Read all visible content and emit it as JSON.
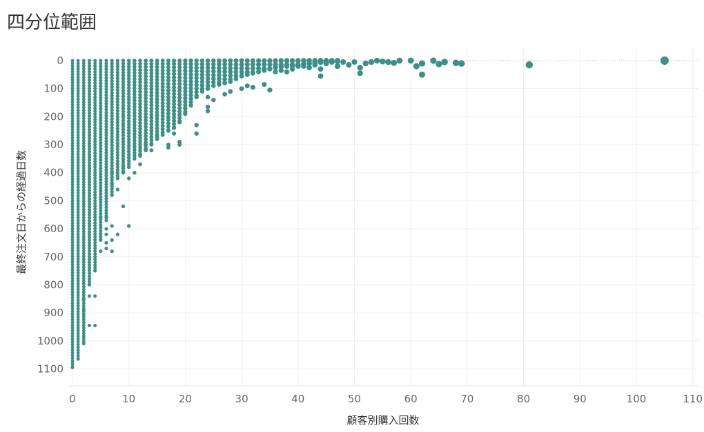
{
  "page": {
    "title": "四分位範囲"
  },
  "chart_data": {
    "type": "scatter",
    "title": "四分位範囲",
    "xlabel": "顧客別購入回数",
    "ylabel": "最終注文日からの経過日数",
    "xlim": [
      0,
      111
    ],
    "ylim": [
      0,
      1120
    ],
    "y_reversed": true,
    "x_ticks": [
      0,
      10,
      20,
      30,
      40,
      50,
      60,
      70,
      80,
      90,
      100,
      110
    ],
    "y_ticks": [
      0,
      100,
      200,
      300,
      400,
      500,
      600,
      700,
      800,
      900,
      1000,
      1100
    ],
    "grid": true,
    "legend": "none",
    "colors": {
      "points": "#3f8f88",
      "grid": "#eeeeee",
      "reference_line": "#bbbbbb"
    },
    "reference_line": {
      "y": 0,
      "style": "dotted"
    },
    "columns": [
      {
        "x": 0,
        "max": 1095
      },
      {
        "x": 1,
        "max": 1065
      },
      {
        "x": 2,
        "max": 1010
      },
      {
        "x": 3,
        "max": 800
      },
      {
        "x": 4,
        "max": 750
      },
      {
        "x": 5,
        "max": 640
      },
      {
        "x": 6,
        "max": 560
      },
      {
        "x": 7,
        "max": 480
      },
      {
        "x": 8,
        "max": 420
      },
      {
        "x": 9,
        "max": 400
      },
      {
        "x": 10,
        "max": 380
      },
      {
        "x": 11,
        "max": 350
      },
      {
        "x": 12,
        "max": 340
      },
      {
        "x": 13,
        "max": 320
      },
      {
        "x": 14,
        "max": 300
      },
      {
        "x": 15,
        "max": 280
      },
      {
        "x": 16,
        "max": 265
      },
      {
        "x": 17,
        "max": 250
      },
      {
        "x": 18,
        "max": 240
      },
      {
        "x": 19,
        "max": 220
      },
      {
        "x": 20,
        "max": 190
      },
      {
        "x": 21,
        "max": 160
      },
      {
        "x": 22,
        "max": 130
      },
      {
        "x": 23,
        "max": 110
      },
      {
        "x": 24,
        "max": 100
      },
      {
        "x": 25,
        "max": 90
      },
      {
        "x": 26,
        "max": 85
      },
      {
        "x": 27,
        "max": 80
      },
      {
        "x": 28,
        "max": 75
      },
      {
        "x": 29,
        "max": 65
      },
      {
        "x": 30,
        "max": 55
      },
      {
        "x": 31,
        "max": 50
      },
      {
        "x": 32,
        "max": 45
      },
      {
        "x": 33,
        "max": 40
      },
      {
        "x": 34,
        "max": 35
      },
      {
        "x": 35,
        "max": 30
      },
      {
        "x": 36,
        "max": 25
      },
      {
        "x": 37,
        "max": 22
      },
      {
        "x": 38,
        "max": 20
      },
      {
        "x": 39,
        "max": 18
      },
      {
        "x": 40,
        "max": 15
      },
      {
        "x": 41,
        "max": 12
      },
      {
        "x": 42,
        "max": 10
      },
      {
        "x": 43,
        "max": 8
      },
      {
        "x": 44,
        "max": 6
      },
      {
        "x": 45,
        "max": 5
      },
      {
        "x": 46,
        "max": 4
      },
      {
        "x": 47,
        "max": 3
      }
    ],
    "points": [
      {
        "x": 6,
        "y": 570
      },
      {
        "x": 6,
        "y": 600
      },
      {
        "x": 6,
        "y": 620
      },
      {
        "x": 6,
        "y": 650
      },
      {
        "x": 6,
        "y": 670
      },
      {
        "x": 7,
        "y": 590
      },
      {
        "x": 7,
        "y": 640
      },
      {
        "x": 7,
        "y": 680
      },
      {
        "x": 8,
        "y": 620
      },
      {
        "x": 9,
        "y": 520
      },
      {
        "x": 10,
        "y": 590
      },
      {
        "x": 3,
        "y": 840
      },
      {
        "x": 3,
        "y": 945
      },
      {
        "x": 2,
        "y": 850
      },
      {
        "x": 2,
        "y": 890
      },
      {
        "x": 4,
        "y": 840
      },
      {
        "x": 4,
        "y": 945
      },
      {
        "x": 5,
        "y": 680
      },
      {
        "x": 5,
        "y": 560
      },
      {
        "x": 7,
        "y": 400
      },
      {
        "x": 7,
        "y": 440
      },
      {
        "x": 8,
        "y": 460
      },
      {
        "x": 9,
        "y": 380
      },
      {
        "x": 10,
        "y": 420
      },
      {
        "x": 11,
        "y": 400
      },
      {
        "x": 12,
        "y": 370
      },
      {
        "x": 13,
        "y": 300
      },
      {
        "x": 14,
        "y": 320
      },
      {
        "x": 15,
        "y": 270
      },
      {
        "x": 17,
        "y": 300
      },
      {
        "x": 17,
        "y": 310
      },
      {
        "x": 18,
        "y": 260
      },
      {
        "x": 19,
        "y": 290
      },
      {
        "x": 19,
        "y": 300
      },
      {
        "x": 20,
        "y": 170
      },
      {
        "x": 22,
        "y": 230
      },
      {
        "x": 22,
        "y": 260
      },
      {
        "x": 24,
        "y": 130
      },
      {
        "x": 25,
        "y": 140
      },
      {
        "x": 24,
        "y": 165
      },
      {
        "x": 24,
        "y": 180
      },
      {
        "x": 27,
        "y": 120
      },
      {
        "x": 28,
        "y": 110
      },
      {
        "x": 30,
        "y": 100
      },
      {
        "x": 31,
        "y": 90
      },
      {
        "x": 32,
        "y": 95
      },
      {
        "x": 34,
        "y": 85
      },
      {
        "x": 35,
        "y": 105
      },
      {
        "x": 36,
        "y": 40
      },
      {
        "x": 37,
        "y": 35
      },
      {
        "x": 38,
        "y": 40
      },
      {
        "x": 39,
        "y": 30
      },
      {
        "x": 40,
        "y": 20
      },
      {
        "x": 41,
        "y": 20
      },
      {
        "x": 42,
        "y": 25
      },
      {
        "x": 43,
        "y": 15
      },
      {
        "x": 44,
        "y": 55
      },
      {
        "x": 44,
        "y": 30
      },
      {
        "x": 45,
        "y": 10
      },
      {
        "x": 46,
        "y": 5
      },
      {
        "x": 47,
        "y": 20
      },
      {
        "x": 48,
        "y": 5
      },
      {
        "x": 49,
        "y": 15
      },
      {
        "x": 50,
        "y": 5
      },
      {
        "x": 51,
        "y": 45
      },
      {
        "x": 51,
        "y": 25
      },
      {
        "x": 52,
        "y": 10
      },
      {
        "x": 53,
        "y": 5
      },
      {
        "x": 54,
        "y": 0
      },
      {
        "x": 55,
        "y": 3
      },
      {
        "x": 56,
        "y": 5
      },
      {
        "x": 57,
        "y": 8
      },
      {
        "x": 58,
        "y": 0
      },
      {
        "x": 60,
        "y": 0
      },
      {
        "x": 61,
        "y": 20
      },
      {
        "x": 62,
        "y": 10
      },
      {
        "x": 62,
        "y": 50
      },
      {
        "x": 64,
        "y": 0
      },
      {
        "x": 65,
        "y": 12
      },
      {
        "x": 66,
        "y": 5
      },
      {
        "x": 68,
        "y": 8
      },
      {
        "x": 69,
        "y": 10
      },
      {
        "x": 81,
        "y": 15
      },
      {
        "x": 105,
        "y": 0
      }
    ]
  }
}
